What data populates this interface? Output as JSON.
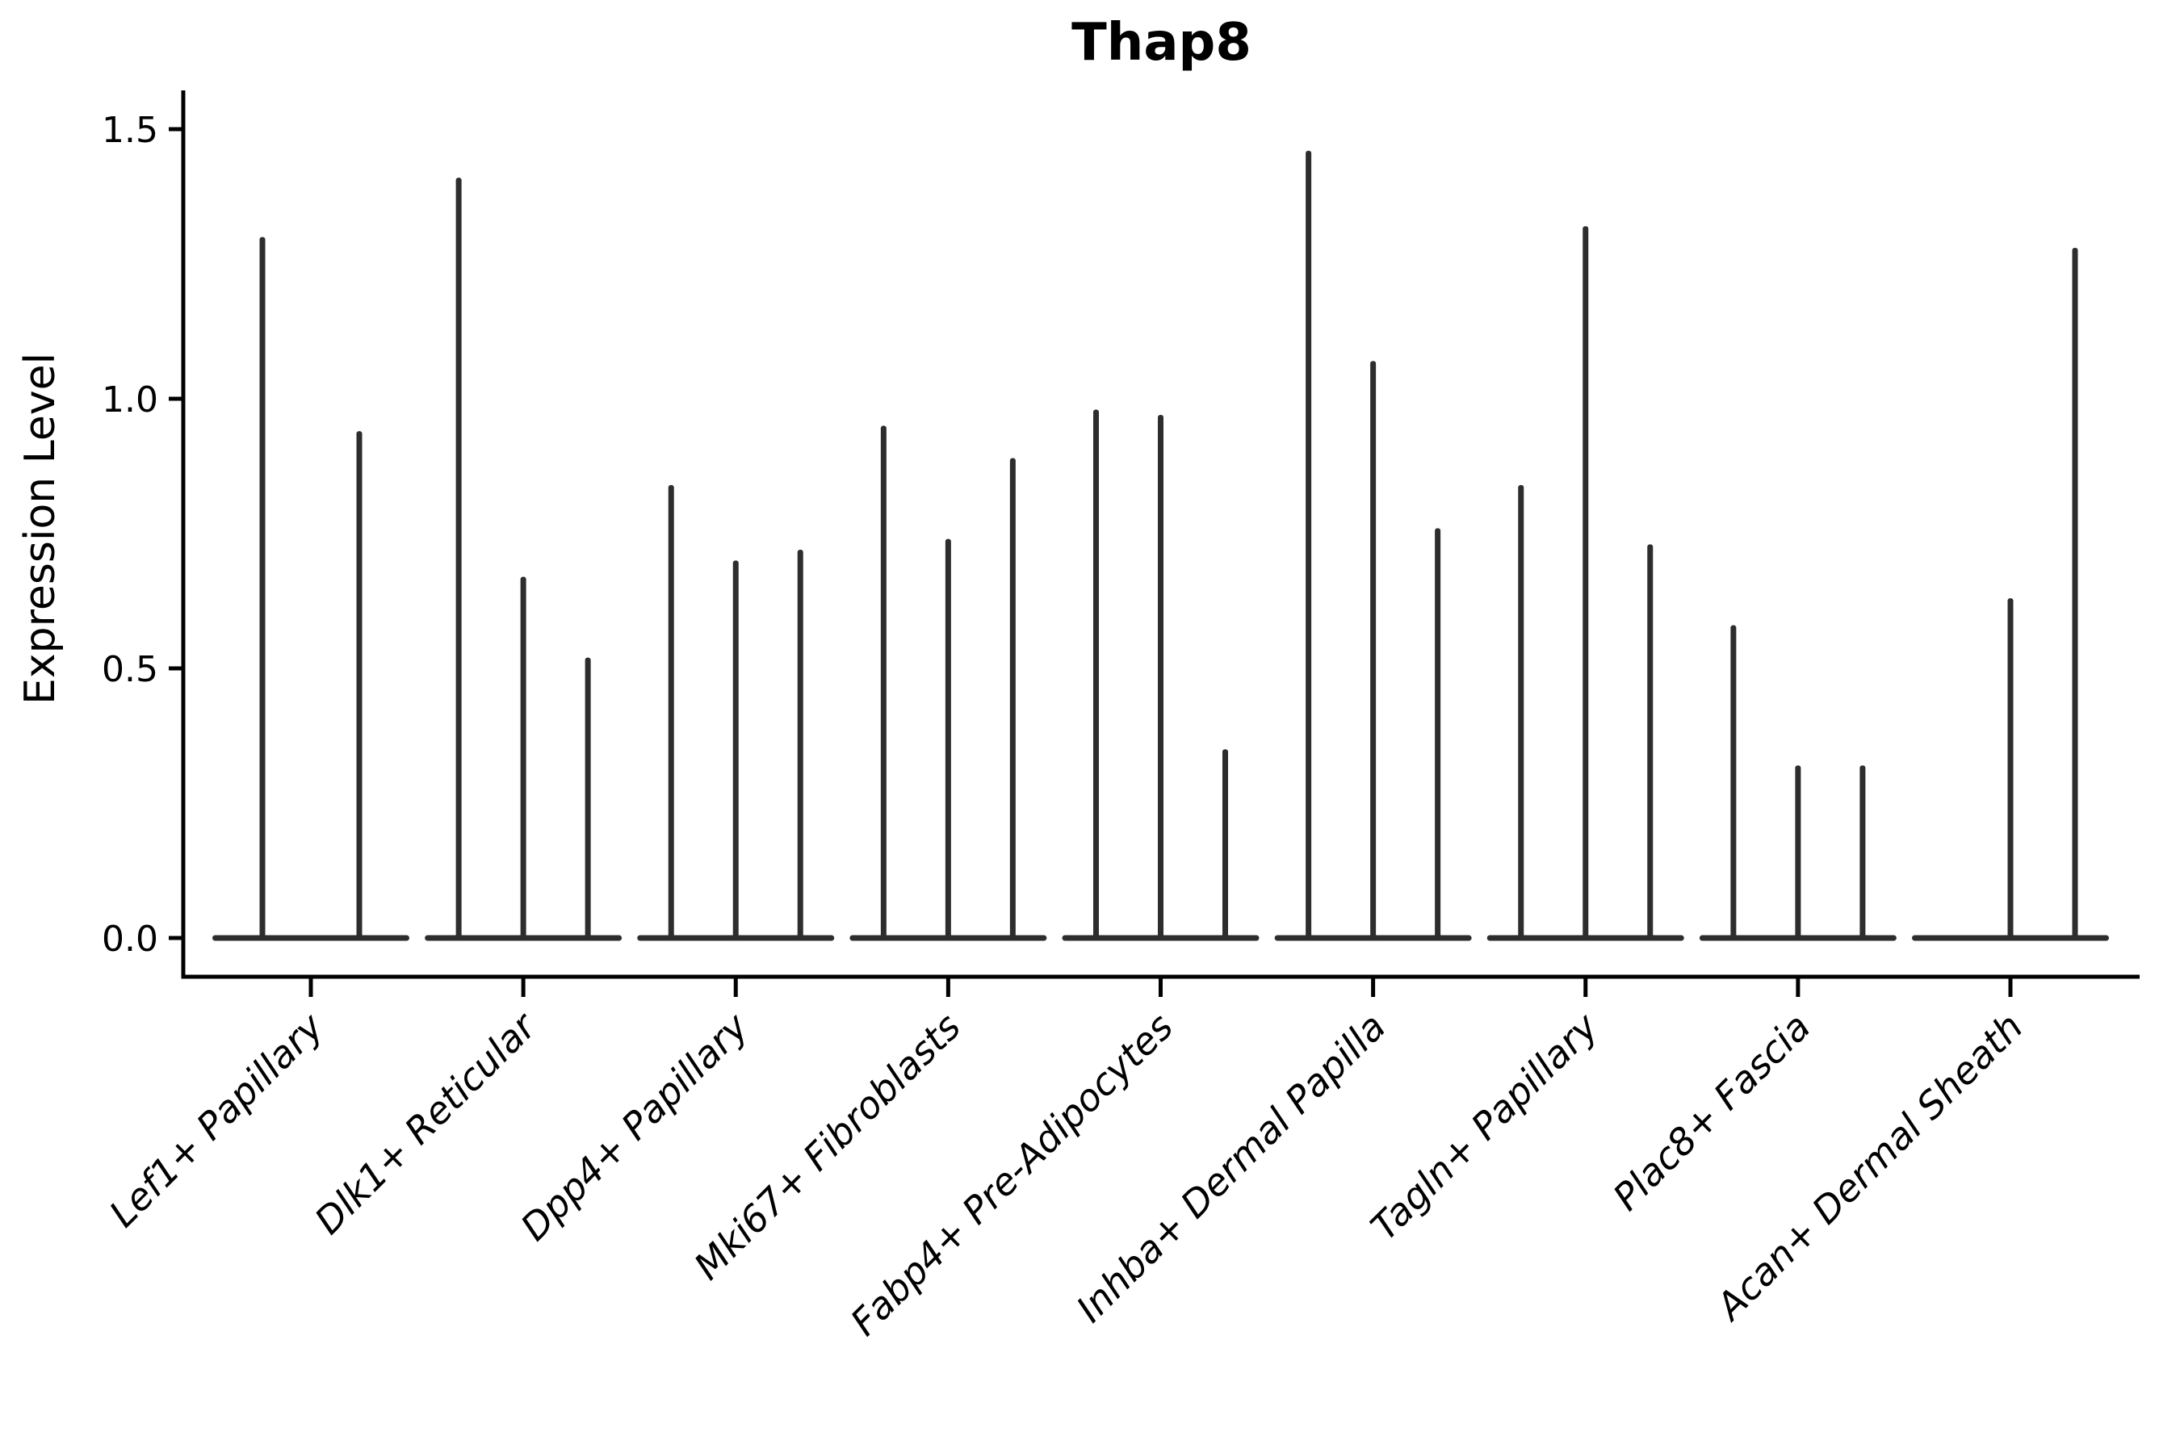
{
  "title": "Thap8",
  "y_axis_label": "Expression Level",
  "chart_data": {
    "type": "violin",
    "title": "Thap8",
    "xlabel": "",
    "ylabel": "Expression Level",
    "ylim": [
      0,
      1.5
    ],
    "yticks": [
      0.0,
      0.5,
      1.0,
      1.5
    ],
    "ytick_labels": [
      "0.0",
      "0.5",
      "1.0",
      "1.5"
    ],
    "grid": false,
    "legend_position": "none",
    "note": "collapsed (near-zero-width) violins: each spike is one violin whose body sits at 0 and whose thin tail reaches the max expression value",
    "violin_color": "#2d2d2d",
    "axis_color": "#000000",
    "categories": [
      "Lef1+ Papillary",
      "Dlk1+ Reticular",
      "Dpp4+ Papillary",
      "Mki67+ Fibroblasts",
      "Fabp4+ Pre-Adipocytes",
      "Inhba+ Dermal Papilla",
      "Tagln+ Papillary",
      "Plac8+ Fascia",
      "Acan+ Dermal Sheath"
    ],
    "series": [
      {
        "category": "Lef1+ Papillary",
        "spikes": [
          {
            "offset": -60,
            "max": 1.3
          },
          {
            "offset": 60,
            "max": 0.94
          }
        ]
      },
      {
        "category": "Dlk1+ Reticular",
        "spikes": [
          {
            "offset": -80,
            "max": 1.41
          },
          {
            "offset": 0,
            "max": 0.67
          },
          {
            "offset": 80,
            "max": 0.52
          }
        ]
      },
      {
        "category": "Dpp4+ Papillary",
        "spikes": [
          {
            "offset": -80,
            "max": 0.84
          },
          {
            "offset": 0,
            "max": 0.7
          },
          {
            "offset": 80,
            "max": 0.72
          }
        ]
      },
      {
        "category": "Mki67+ Fibroblasts",
        "spikes": [
          {
            "offset": -80,
            "max": 0.95
          },
          {
            "offset": 0,
            "max": 0.74
          },
          {
            "offset": 80,
            "max": 0.89
          }
        ]
      },
      {
        "category": "Fabp4+ Pre-Adipocytes",
        "spikes": [
          {
            "offset": -80,
            "max": 0.98
          },
          {
            "offset": 0,
            "max": 0.97
          },
          {
            "offset": 80,
            "max": 0.35
          }
        ]
      },
      {
        "category": "Inhba+ Dermal Papilla",
        "spikes": [
          {
            "offset": -80,
            "max": 1.46
          },
          {
            "offset": 0,
            "max": 1.07
          },
          {
            "offset": 80,
            "max": 0.76
          }
        ]
      },
      {
        "category": "Tagln+ Papillary",
        "spikes": [
          {
            "offset": -80,
            "max": 0.84
          },
          {
            "offset": 0,
            "max": 1.32
          },
          {
            "offset": 80,
            "max": 0.73
          }
        ]
      },
      {
        "category": "Plac8+ Fascia",
        "spikes": [
          {
            "offset": -80,
            "max": 0.58
          },
          {
            "offset": 0,
            "max": 0.32
          },
          {
            "offset": 80,
            "max": 0.32
          }
        ]
      },
      {
        "category": "Acan+ Dermal Sheath",
        "spikes": [
          {
            "offset": 0,
            "max": 0.63
          },
          {
            "offset": 80,
            "max": 1.28
          }
        ]
      }
    ]
  }
}
